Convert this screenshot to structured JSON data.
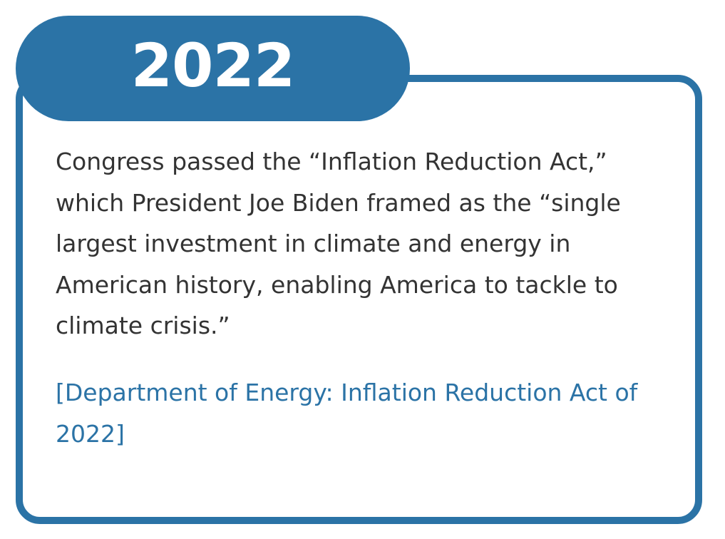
{
  "badge": {
    "year": "2022"
  },
  "body": {
    "text": "Congress passed the “Inflation Reduction Act,” which President Joe Biden framed as the “single largest investment in climate and energy in American history, enabling America to tackle to climate crisis.”"
  },
  "citation": {
    "text": "[Department of Energy: Inflation Reduction Act of 2022]"
  }
}
